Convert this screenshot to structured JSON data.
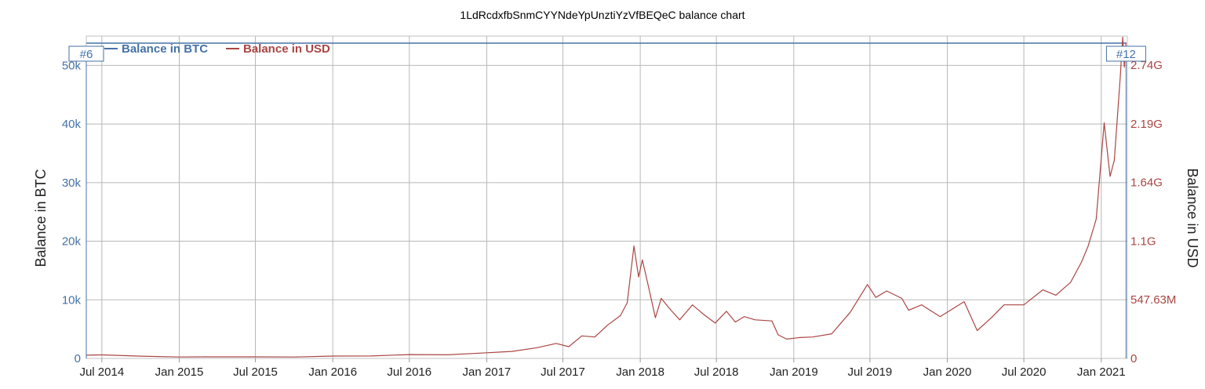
{
  "chart_data": {
    "type": "line",
    "title": "1LdRcdxfbSnmCYYNdeYpUnztiYzVfBEQeC balance chart",
    "ylabel": "Balance in BTC",
    "y2label": "Balance in USD",
    "grid": true,
    "legend_placement": "top-left",
    "x_ticks": [
      "Jul 2014",
      "Jan 2015",
      "Jul 2015",
      "Jan 2016",
      "Jul 2016",
      "Jan 2017",
      "Jul 2017",
      "Jan 2018",
      "Jul 2018",
      "Jan 2019",
      "Jul 2019",
      "Jan 2020",
      "Jul 2020",
      "Jan 2021"
    ],
    "y_ticks": [
      "0",
      "10k",
      "20k",
      "30k",
      "40k",
      "50k"
    ],
    "y2_ticks": [
      "0",
      "547.63M",
      "1.1G",
      "1.64G",
      "2.19G",
      "2.74G"
    ],
    "ylim": [
      0,
      55000
    ],
    "y2lim": [
      0,
      3010000000
    ],
    "markers": [
      {
        "label": "#6",
        "x": "2014-05-25"
      },
      {
        "label": "#12",
        "x": "2021-03-01"
      }
    ],
    "series": [
      {
        "name": "Balance in BTC",
        "color": "#4572a7",
        "axis": "left",
        "points": [
          [
            "2014-05-25",
            53800
          ],
          [
            "2021-03-01",
            53800
          ]
        ]
      },
      {
        "name": "Balance in USD",
        "color": "#aa4643",
        "axis": "right",
        "points": [
          [
            "2014-05-25",
            30000000
          ],
          [
            "2014-07-01",
            33000000
          ],
          [
            "2014-10-01",
            21000000
          ],
          [
            "2015-01-01",
            13000000
          ],
          [
            "2015-03-01",
            15000000
          ],
          [
            "2015-07-01",
            15000000
          ],
          [
            "2015-10-01",
            13000000
          ],
          [
            "2016-01-01",
            22000000
          ],
          [
            "2016-04-01",
            23000000
          ],
          [
            "2016-07-01",
            36000000
          ],
          [
            "2016-10-01",
            34000000
          ],
          [
            "2017-01-01",
            53000000
          ],
          [
            "2017-03-01",
            65000000
          ],
          [
            "2017-05-01",
            100000000
          ],
          [
            "2017-06-15",
            140000000
          ],
          [
            "2017-07-15",
            110000000
          ],
          [
            "2017-08-15",
            210000000
          ],
          [
            "2017-09-15",
            200000000
          ],
          [
            "2017-10-15",
            310000000
          ],
          [
            "2017-11-15",
            400000000
          ],
          [
            "2017-12-01",
            520000000
          ],
          [
            "2017-12-17",
            1050000000
          ],
          [
            "2017-12-28",
            760000000
          ],
          [
            "2018-01-06",
            920000000
          ],
          [
            "2018-01-20",
            680000000
          ],
          [
            "2018-02-06",
            380000000
          ],
          [
            "2018-02-20",
            560000000
          ],
          [
            "2018-03-15",
            450000000
          ],
          [
            "2018-04-05",
            360000000
          ],
          [
            "2018-05-05",
            500000000
          ],
          [
            "2018-06-01",
            410000000
          ],
          [
            "2018-06-28",
            330000000
          ],
          [
            "2018-07-25",
            440000000
          ],
          [
            "2018-08-15",
            340000000
          ],
          [
            "2018-09-05",
            390000000
          ],
          [
            "2018-10-01",
            360000000
          ],
          [
            "2018-11-10",
            350000000
          ],
          [
            "2018-11-25",
            220000000
          ],
          [
            "2018-12-15",
            180000000
          ],
          [
            "2019-01-15",
            195000000
          ],
          [
            "2019-02-15",
            200000000
          ],
          [
            "2019-04-01",
            230000000
          ],
          [
            "2019-05-15",
            430000000
          ],
          [
            "2019-06-25",
            690000000
          ],
          [
            "2019-07-15",
            570000000
          ],
          [
            "2019-08-10",
            630000000
          ],
          [
            "2019-09-15",
            560000000
          ],
          [
            "2019-10-01",
            450000000
          ],
          [
            "2019-11-01",
            500000000
          ],
          [
            "2019-12-15",
            390000000
          ],
          [
            "2020-02-10",
            530000000
          ],
          [
            "2020-03-12",
            260000000
          ],
          [
            "2020-04-15",
            380000000
          ],
          [
            "2020-05-15",
            500000000
          ],
          [
            "2020-07-01",
            500000000
          ],
          [
            "2020-08-15",
            640000000
          ],
          [
            "2020-09-15",
            590000000
          ],
          [
            "2020-10-20",
            710000000
          ],
          [
            "2020-11-15",
            900000000
          ],
          [
            "2020-12-01",
            1050000000
          ],
          [
            "2020-12-20",
            1300000000
          ],
          [
            "2021-01-08",
            2200000000
          ],
          [
            "2021-01-22",
            1700000000
          ],
          [
            "2021-02-01",
            1850000000
          ],
          [
            "2021-02-15",
            2620000000
          ],
          [
            "2021-02-21",
            3000000000
          ],
          [
            "2021-02-25",
            2720000000
          ],
          [
            "2021-03-01",
            2950000000
          ]
        ]
      }
    ]
  }
}
